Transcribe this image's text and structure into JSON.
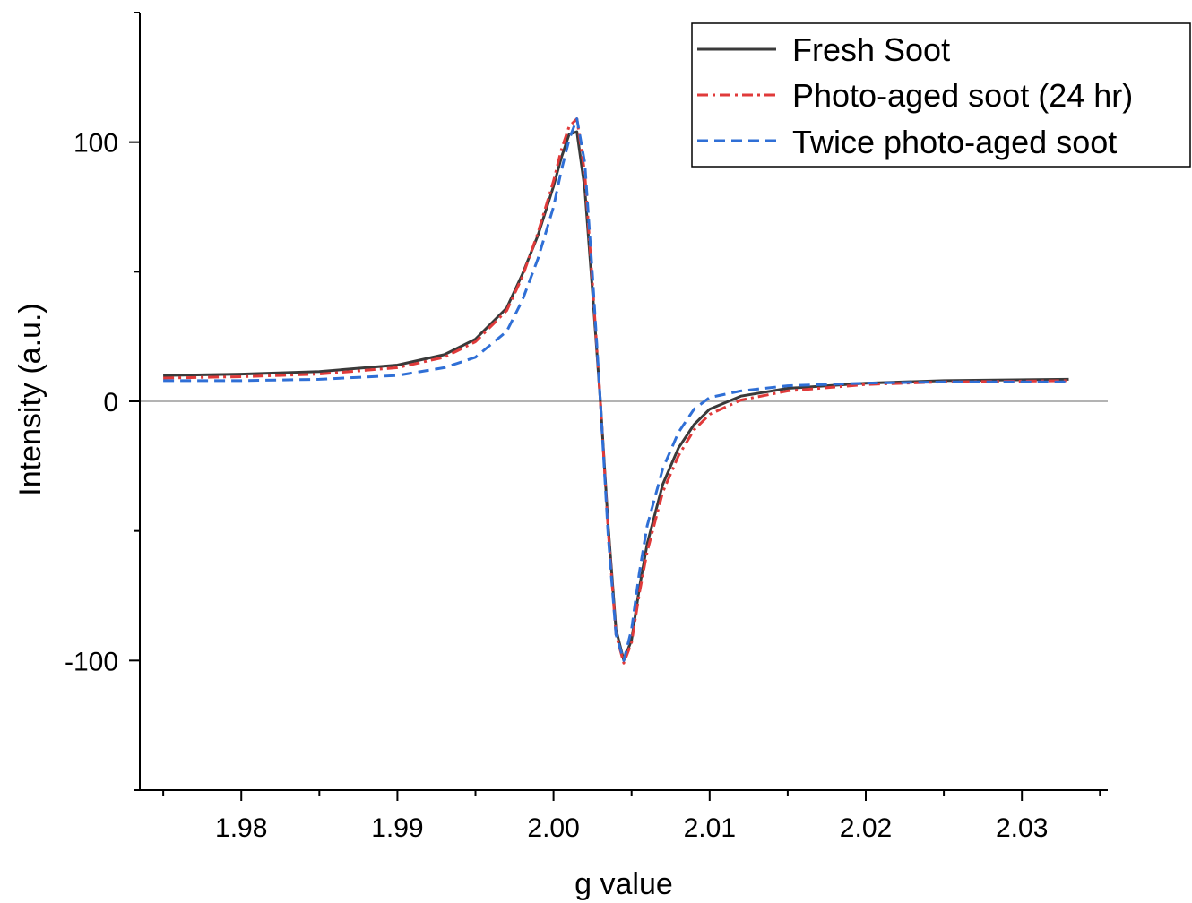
{
  "chart_data": {
    "type": "line",
    "xlabel": "g value",
    "ylabel": "Intensity (a.u.)",
    "xlim": [
      1.9735,
      2.0355
    ],
    "ylim": [
      -150,
      150
    ],
    "xticks": [
      1.98,
      1.99,
      2.0,
      2.01,
      2.02,
      2.03
    ],
    "xtick_labels": [
      "1.98",
      "1.99",
      "2.00",
      "2.01",
      "2.02",
      "2.03"
    ],
    "yticks": [
      -100,
      0,
      100
    ],
    "ytick_labels": [
      "-100",
      "0",
      "100"
    ],
    "zero_line": true,
    "grid": false,
    "legend_position": "top-right",
    "series": [
      {
        "name": "Fresh Soot",
        "color": "#3a3a3a",
        "dash": "solid",
        "x": [
          1.975,
          1.98,
          1.985,
          1.99,
          1.993,
          1.995,
          1.997,
          1.998,
          1.999,
          2.0,
          2.0005,
          2.001,
          2.0015,
          2.002,
          2.0025,
          2.003,
          2.0035,
          2.004,
          2.0045,
          2.005,
          2.0055,
          2.006,
          2.007,
          2.008,
          2.009,
          2.01,
          2.012,
          2.015,
          2.02,
          2.025,
          2.033
        ],
        "y": [
          10,
          10.5,
          11.5,
          14,
          18,
          24,
          36,
          49,
          64,
          83,
          94,
          103,
          104,
          82,
          42,
          0,
          -48,
          -88,
          -100,
          -92,
          -72,
          -55,
          -32,
          -18,
          -9,
          -3,
          2,
          5,
          7,
          8,
          8.5
        ]
      },
      {
        "name": "Photo-aged soot (24 hr)",
        "color": "#e03a3a",
        "dash": "dashdot",
        "x": [
          1.975,
          1.98,
          1.985,
          1.99,
          1.993,
          1.995,
          1.997,
          1.998,
          1.999,
          2.0,
          2.0005,
          2.001,
          2.0015,
          2.002,
          2.0025,
          2.003,
          2.0035,
          2.004,
          2.0045,
          2.005,
          2.0055,
          2.006,
          2.007,
          2.008,
          2.009,
          2.01,
          2.012,
          2.015,
          2.02,
          2.025,
          2.033
        ],
        "y": [
          9,
          9.5,
          10.5,
          13,
          17,
          23,
          35,
          48,
          65,
          85,
          97,
          106,
          109,
          88,
          45,
          0,
          -50,
          -90,
          -101,
          -93,
          -74,
          -58,
          -35,
          -21,
          -11,
          -5,
          0.5,
          4,
          6.5,
          7.5,
          8
        ]
      },
      {
        "name": "Twice photo-aged soot",
        "color": "#2f6fd6",
        "dash": "dashed",
        "x": [
          1.975,
          1.98,
          1.985,
          1.99,
          1.993,
          1.995,
          1.997,
          1.998,
          1.999,
          2.0,
          2.0005,
          2.001,
          2.0015,
          2.002,
          2.0025,
          2.003,
          2.0035,
          2.004,
          2.0045,
          2.005,
          2.0055,
          2.006,
          2.007,
          2.008,
          2.009,
          2.01,
          2.012,
          2.015,
          2.02,
          2.025,
          2.033
        ],
        "y": [
          8,
          8,
          8.5,
          10,
          13,
          17,
          27,
          39,
          55,
          75,
          89,
          101,
          109,
          92,
          48,
          0,
          -52,
          -90,
          -100,
          -88,
          -66,
          -48,
          -26,
          -12,
          -3,
          1.5,
          4,
          6,
          7,
          7.5,
          7.5
        ]
      }
    ]
  }
}
